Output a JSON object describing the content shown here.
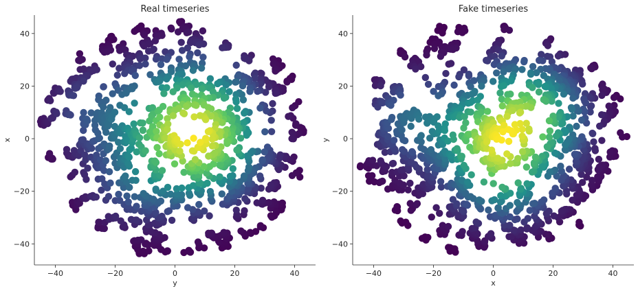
{
  "chart_data": [
    {
      "type": "scatter",
      "title": "Real timeseries",
      "xlabel": "y",
      "ylabel": "x",
      "xlim": [
        -47,
        47
      ],
      "ylim": [
        -48,
        47
      ],
      "xticks": [
        -40,
        -20,
        0,
        20,
        40
      ],
      "yticks": [
        -40,
        -20,
        0,
        20,
        40
      ],
      "grid": false,
      "legend": "none",
      "colormap": "viridis",
      "color_encodes": "point density",
      "colormap_colors": [
        "#440154",
        "#3b528b",
        "#21918c",
        "#5ec962",
        "#fde725"
      ],
      "density_centers": [
        {
          "x": -5,
          "y": 0,
          "weight": 1.0
        },
        {
          "x": 8,
          "y": -13,
          "weight": 0.9
        },
        {
          "x": 15,
          "y": 7,
          "weight": 0.85
        },
        {
          "x": 6,
          "y": 3,
          "weight": 0.8
        },
        {
          "x": -28,
          "y": 11,
          "weight": 0.7
        },
        {
          "x": -14,
          "y": -17,
          "weight": 0.7
        },
        {
          "x": -3,
          "y": 17,
          "weight": 0.75
        },
        {
          "x": 18,
          "y": -5,
          "weight": 0.7
        },
        {
          "x": 12,
          "y": 22,
          "weight": 0.6
        }
      ]
    },
    {
      "type": "scatter",
      "title": "Fake timeseries",
      "xlabel": "x",
      "ylabel": "y",
      "xlim": [
        -47,
        47
      ],
      "ylim": [
        -48,
        47
      ],
      "xticks": [
        -40,
        -20,
        0,
        20,
        40
      ],
      "yticks": [
        -40,
        -20,
        0,
        20,
        40
      ],
      "grid": false,
      "legend": "none",
      "colormap": "viridis",
      "color_encodes": "point density",
      "colormap_colors": [
        "#440154",
        "#3b528b",
        "#21918c",
        "#5ec962",
        "#fde725"
      ],
      "density_centers": [
        {
          "x": -3,
          "y": 1,
          "weight": 1.0
        },
        {
          "x": 4,
          "y": -15,
          "weight": 0.95
        },
        {
          "x": 15,
          "y": 6,
          "weight": 0.95
        },
        {
          "x": -28,
          "y": 8,
          "weight": 0.6
        },
        {
          "x": 10,
          "y": 18,
          "weight": 0.6
        }
      ]
    }
  ]
}
